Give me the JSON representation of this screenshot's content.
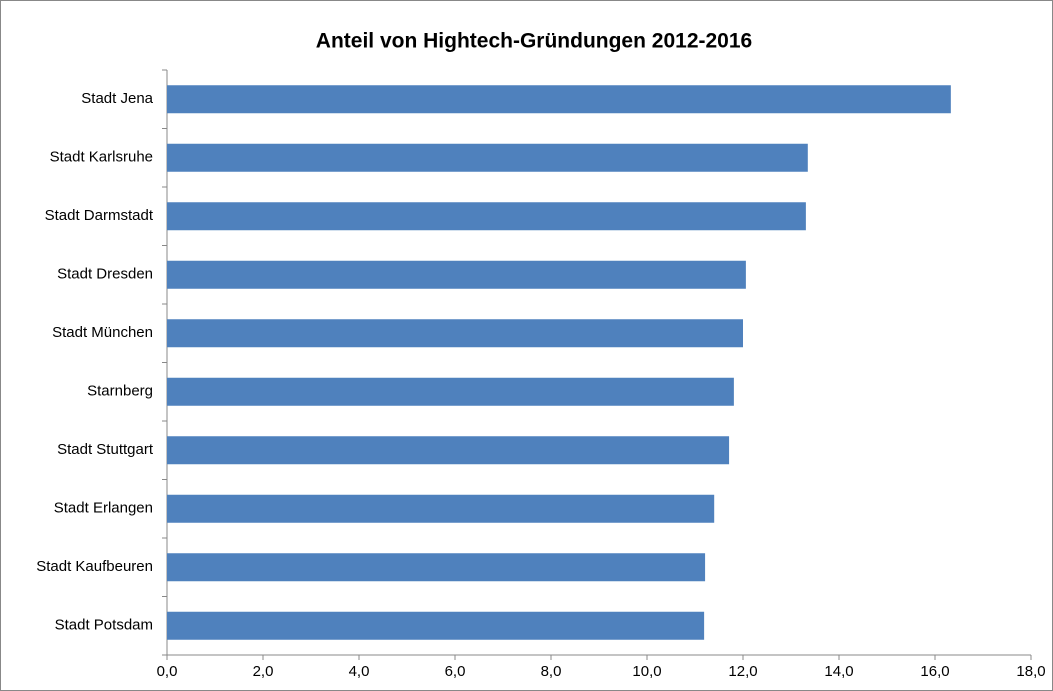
{
  "chart_data": {
    "type": "barh",
    "title": "Anteil von Hightech-Gründungen 2012-2016",
    "categories": [
      "Stadt Jena",
      "Stadt Karlsruhe",
      "Stadt Darmstadt",
      "Stadt Dresden",
      "Stadt München",
      "Starnberg",
      "Stadt Stuttgart",
      "Stadt Erlangen",
      "Stadt Kaufbeuren",
      "Stadt Potsdam"
    ],
    "values": [
      16.33,
      13.35,
      13.31,
      12.06,
      12.0,
      11.81,
      11.71,
      11.4,
      11.21,
      11.19
    ],
    "color": "#4f81bd",
    "xlim": [
      0,
      18
    ],
    "xticks": [
      {
        "value": 0,
        "label": "0,0"
      },
      {
        "value": 2,
        "label": "2,0"
      },
      {
        "value": 4,
        "label": "4,0"
      },
      {
        "value": 6,
        "label": "6,0"
      },
      {
        "value": 8,
        "label": "8,0"
      },
      {
        "value": 10,
        "label": "10,0"
      },
      {
        "value": 12,
        "label": "12,0"
      },
      {
        "value": 14,
        "label": "14,0"
      },
      {
        "value": 16,
        "label": "16,0"
      },
      {
        "value": 18,
        "label": "18,0"
      }
    ],
    "grid": false
  }
}
